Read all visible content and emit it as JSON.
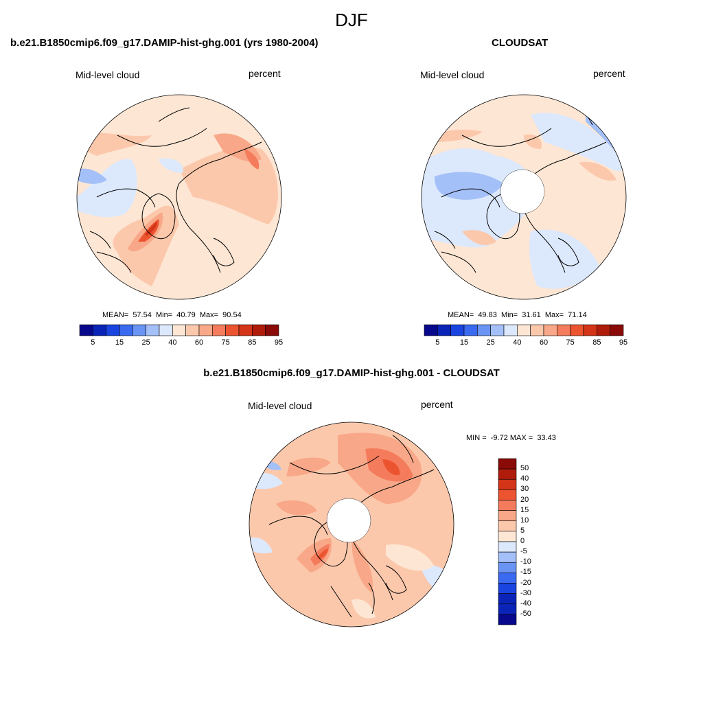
{
  "figure": {
    "season": "DJF"
  },
  "panels": [
    {
      "title": "b.e21.B1850cmip6.f09_g17.DAMIP-hist-ghg.001 (yrs 1980-2004)",
      "left_label": "Mid-level cloud",
      "right_label": "percent",
      "stats": "MEAN=  57.54  Min=  40.79  Max=  90.54",
      "has_polar_hole": false
    },
    {
      "title": "CLOUDSAT",
      "left_label": "Mid-level cloud",
      "right_label": "percent",
      "stats": "MEAN=  49.83  Min=  31.61  Max=  71.14",
      "has_polar_hole": true
    },
    {
      "title": "b.e21.B1850cmip6.f09_g17.DAMIP-hist-ghg.001 - CLOUDSAT",
      "left_label": "Mid-level cloud",
      "right_label": "percent",
      "stats": "MIN =  -9.72 MAX =  33.43",
      "has_polar_hole": true
    }
  ],
  "colorbar_abs": {
    "tick_labels": [
      "5",
      "15",
      "25",
      "40",
      "60",
      "75",
      "85",
      "95"
    ],
    "colors": [
      "#08088c",
      "#0b24b8",
      "#1a44e0",
      "#3a6af0",
      "#6a94f4",
      "#a4c0f8",
      "#dce8fc",
      "#fde6d4",
      "#fcc8ac",
      "#f8a888",
      "#f47c5c",
      "#ec5430",
      "#d43418",
      "#b01c0c",
      "#8a0a08"
    ]
  },
  "colorbar_diff": {
    "tick_labels": [
      "50",
      "40",
      "30",
      "20",
      "15",
      "10",
      "5",
      "0",
      "-5",
      "-10",
      "-15",
      "-20",
      "-30",
      "-40",
      "-50"
    ],
    "colors": [
      "#8a0a08",
      "#b01c0c",
      "#d43418",
      "#ec5430",
      "#f47c5c",
      "#f8a888",
      "#fcc8ac",
      "#fde6d4",
      "#dce8fc",
      "#a4c0f8",
      "#6a94f4",
      "#3a6af0",
      "#1a44e0",
      "#0b24b8",
      "#0b24b8",
      "#08088c"
    ]
  }
}
